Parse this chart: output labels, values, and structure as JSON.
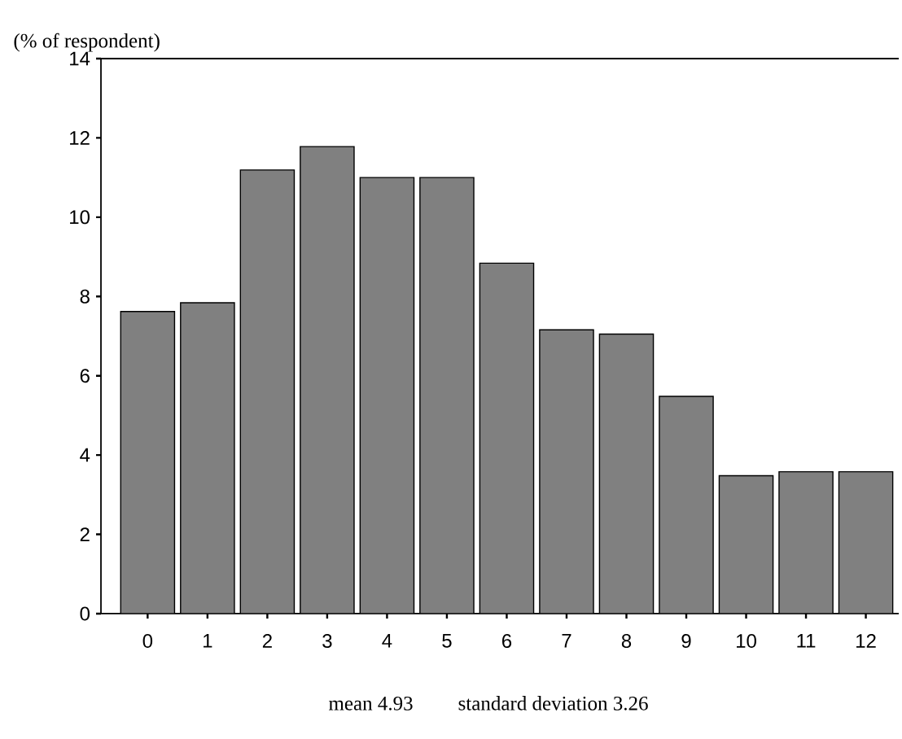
{
  "chart_data": {
    "type": "bar",
    "categories": [
      "0",
      "1",
      "2",
      "3",
      "4",
      "5",
      "6",
      "7",
      "8",
      "9",
      "10",
      "11",
      "12"
    ],
    "values": [
      7.62,
      7.84,
      11.19,
      11.78,
      11.0,
      11.0,
      8.84,
      7.16,
      7.05,
      5.48,
      3.48,
      3.58,
      3.58
    ],
    "color": "#808080",
    "ylabel": "(% of respondent)",
    "ylim": [
      0,
      14
    ],
    "yticks": [
      0,
      2,
      4,
      6,
      8,
      10,
      12,
      14
    ],
    "annotations": [
      "mean 4.93",
      "standard deviation 3.26"
    ],
    "grid": false
  }
}
